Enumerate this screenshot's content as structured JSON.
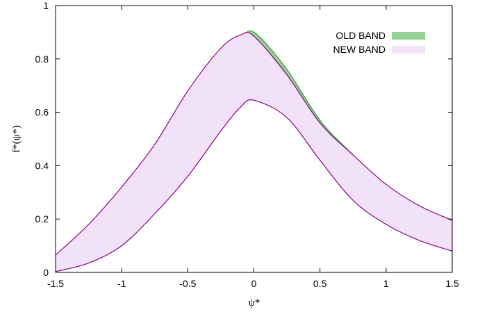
{
  "chart_data": {
    "type": "area",
    "xlabel": "ψ*",
    "ylabel": "f*(ψ*)",
    "xlim": [
      -1.5,
      1.5
    ],
    "ylim": [
      0,
      1
    ],
    "xticks": [
      "-1.5",
      "-1",
      "-0.5",
      "0",
      "0.5",
      "1",
      "1.5"
    ],
    "yticks": [
      "0",
      "0.2",
      "0.4",
      "0.6",
      "0.8",
      "1"
    ],
    "grid": false,
    "legend_position": "top-right",
    "x": [
      -1.5,
      -1.25,
      -1.0,
      -0.75,
      -0.5,
      -0.25,
      -0.1,
      0.0,
      0.25,
      0.5,
      0.75,
      1.0,
      1.25,
      1.5
    ],
    "series": [
      {
        "name": "OLD BAND",
        "color": "#96d296",
        "line_color": "#2ca02c",
        "upper": [
          0.06,
          0.16,
          0.29,
          0.44,
          0.62,
          0.8,
          0.87,
          0.9,
          0.76,
          0.57,
          0.44,
          0.32,
          0.25,
          0.19
        ],
        "lower": [
          0.005,
          0.04,
          0.11,
          0.23,
          0.37,
          0.54,
          0.63,
          0.655,
          0.59,
          0.43,
          0.28,
          0.2,
          0.145,
          0.115
        ]
      },
      {
        "name": "NEW BAND",
        "color": "#f1e2f8",
        "line_color": "#8b008b",
        "upper": [
          0.065,
          0.18,
          0.32,
          0.48,
          0.68,
          0.84,
          0.89,
          0.885,
          0.74,
          0.56,
          0.44,
          0.33,
          0.25,
          0.195
        ],
        "lower": [
          0.003,
          0.035,
          0.1,
          0.22,
          0.36,
          0.53,
          0.62,
          0.645,
          0.58,
          0.42,
          0.27,
          0.18,
          0.12,
          0.08
        ]
      }
    ]
  }
}
